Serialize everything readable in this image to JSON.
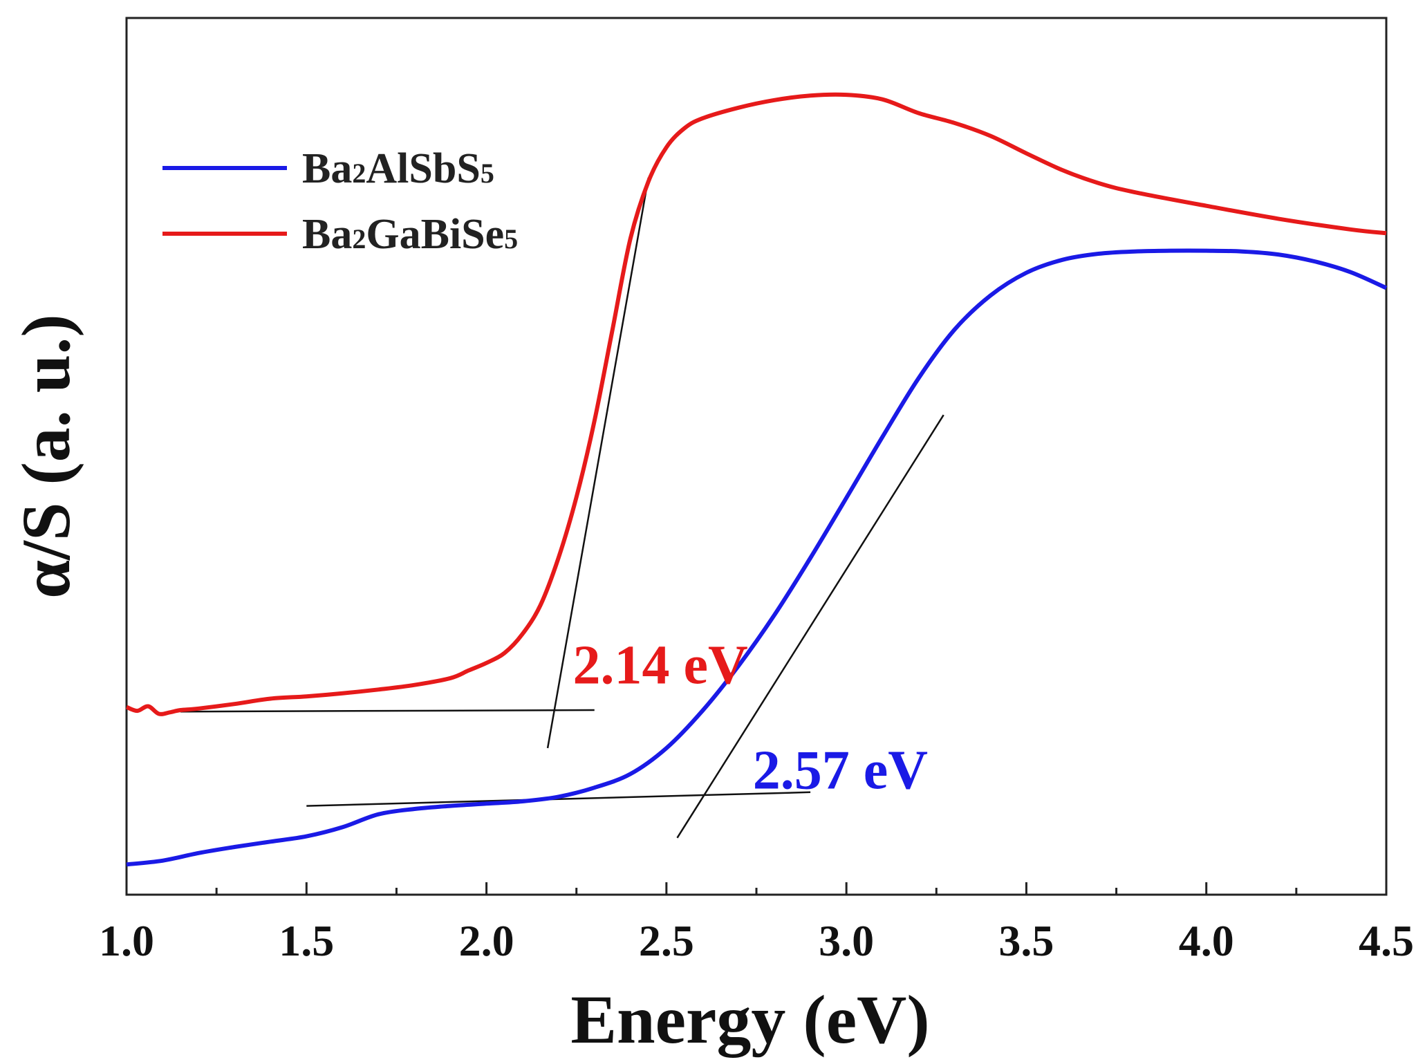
{
  "chart_data": {
    "type": "line",
    "xlabel": "Energy (eV)",
    "ylabel": "α/S (a. u.)",
    "xlim": [
      1.0,
      4.5
    ],
    "ylim": [
      0,
      1
    ],
    "xticks": [
      "1.0",
      "1.5",
      "2.0",
      "2.5",
      "3.0",
      "3.5",
      "4.0",
      "4.5"
    ],
    "grid": false,
    "legend_position": "top-left",
    "series": [
      {
        "name": "Ba2AlSbS5",
        "name_main": "Ba",
        "name_parts": [
          {
            "text": "Ba",
            "sub": false
          },
          {
            "text": "2",
            "sub": true
          },
          {
            "text": "AlSbS",
            "sub": false
          },
          {
            "text": "5",
            "sub": true
          }
        ],
        "color": "#1a1ae6",
        "points": [
          [
            1.0,
            0.027
          ],
          [
            1.1,
            0.032
          ],
          [
            1.2,
            0.042
          ],
          [
            1.3,
            0.05
          ],
          [
            1.4,
            0.057
          ],
          [
            1.5,
            0.064
          ],
          [
            1.6,
            0.076
          ],
          [
            1.7,
            0.093
          ],
          [
            1.8,
            0.1
          ],
          [
            1.9,
            0.104
          ],
          [
            2.0,
            0.107
          ],
          [
            2.1,
            0.11
          ],
          [
            2.2,
            0.116
          ],
          [
            2.3,
            0.128
          ],
          [
            2.4,
            0.146
          ],
          [
            2.5,
            0.18
          ],
          [
            2.6,
            0.229
          ],
          [
            2.7,
            0.288
          ],
          [
            2.8,
            0.355
          ],
          [
            2.9,
            0.43
          ],
          [
            3.0,
            0.509
          ],
          [
            3.1,
            0.589
          ],
          [
            3.2,
            0.666
          ],
          [
            3.3,
            0.73
          ],
          [
            3.4,
            0.775
          ],
          [
            3.5,
            0.805
          ],
          [
            3.6,
            0.822
          ],
          [
            3.7,
            0.83
          ],
          [
            3.8,
            0.833
          ],
          [
            3.9,
            0.834
          ],
          [
            4.0,
            0.834
          ],
          [
            4.1,
            0.833
          ],
          [
            4.2,
            0.829
          ],
          [
            4.3,
            0.82
          ],
          [
            4.4,
            0.806
          ],
          [
            4.5,
            0.785
          ]
        ]
      },
      {
        "name": "Ba2GaBiSe5",
        "name_parts": [
          {
            "text": "Ba",
            "sub": false
          },
          {
            "text": "2",
            "sub": true
          },
          {
            "text": "GaBiSe",
            "sub": false
          },
          {
            "text": "5",
            "sub": true
          }
        ],
        "color": "#e61a1a",
        "points": [
          [
            1.0,
            0.234
          ],
          [
            1.03,
            0.229
          ],
          [
            1.06,
            0.235
          ],
          [
            1.09,
            0.225
          ],
          [
            1.12,
            0.227
          ],
          [
            1.15,
            0.23
          ],
          [
            1.2,
            0.232
          ],
          [
            1.3,
            0.238
          ],
          [
            1.4,
            0.245
          ],
          [
            1.5,
            0.248
          ],
          [
            1.6,
            0.252
          ],
          [
            1.7,
            0.257
          ],
          [
            1.8,
            0.263
          ],
          [
            1.9,
            0.272
          ],
          [
            1.95,
            0.282
          ],
          [
            2.0,
            0.292
          ],
          [
            2.05,
            0.305
          ],
          [
            2.1,
            0.33
          ],
          [
            2.15,
            0.368
          ],
          [
            2.2,
            0.43
          ],
          [
            2.25,
            0.51
          ],
          [
            2.3,
            0.61
          ],
          [
            2.35,
            0.73
          ],
          [
            2.4,
            0.85
          ],
          [
            2.45,
            0.925
          ],
          [
            2.5,
            0.97
          ],
          [
            2.55,
            0.995
          ],
          [
            2.6,
            1.008
          ],
          [
            2.7,
            1.022
          ],
          [
            2.8,
            1.032
          ],
          [
            2.9,
            1.038
          ],
          [
            3.0,
            1.039
          ],
          [
            3.1,
            1.033
          ],
          [
            3.2,
            1.015
          ],
          [
            3.3,
            1.002
          ],
          [
            3.4,
            0.985
          ],
          [
            3.5,
            0.962
          ],
          [
            3.6,
            0.94
          ],
          [
            3.7,
            0.923
          ],
          [
            3.8,
            0.911
          ],
          [
            4.0,
            0.893
          ],
          [
            4.2,
            0.876
          ],
          [
            4.4,
            0.862
          ],
          [
            4.5,
            0.857
          ]
        ]
      }
    ],
    "annotations": [
      {
        "text": "2.14 eV",
        "color": "#e61a1a",
        "x": 2.24,
        "y": 0.265
      },
      {
        "text": "2.57 eV",
        "color": "#1a1ae6",
        "x": 2.74,
        "y": 0.127
      }
    ],
    "tangent_lines": [
      {
        "series": "Ba2GaBiSe5",
        "from": [
          1.15,
          0.228
        ],
        "to": [
          2.3,
          0.23
        ]
      },
      {
        "series": "Ba2GaBiSe5",
        "from": [
          2.17,
          0.18
        ],
        "to": [
          2.45,
          0.93
        ]
      },
      {
        "series": "Ba2AlSbS5",
        "from": [
          1.5,
          0.104
        ],
        "to": [
          2.9,
          0.122
        ]
      },
      {
        "series": "Ba2AlSbS5",
        "from": [
          2.53,
          0.062
        ],
        "to": [
          3.27,
          0.618
        ]
      }
    ]
  }
}
